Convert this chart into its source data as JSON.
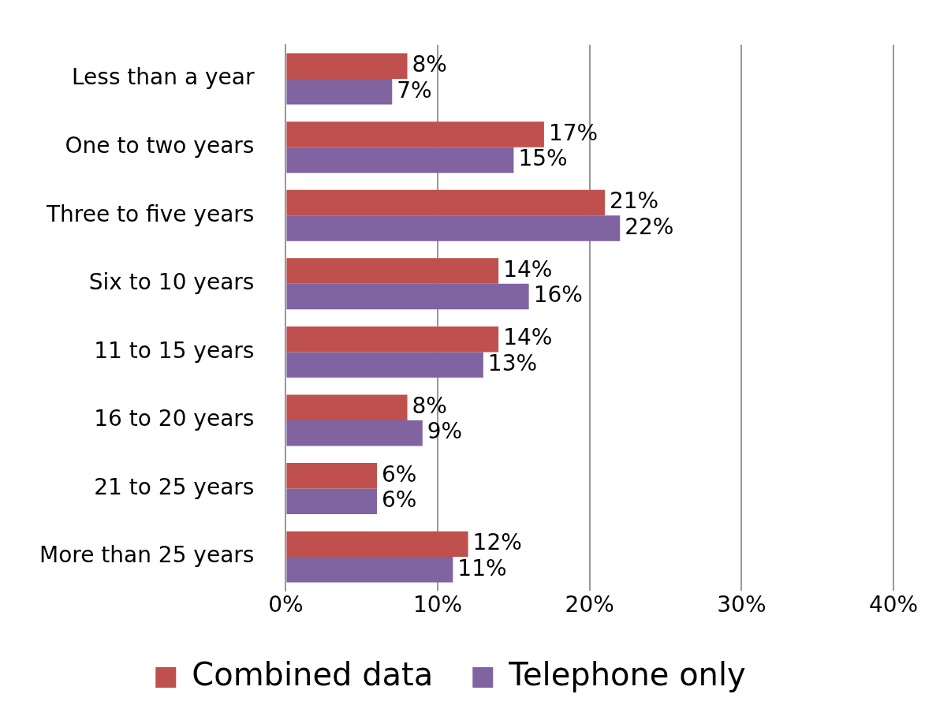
{
  "chart_data": {
    "type": "bar",
    "orientation": "horizontal",
    "categories": [
      "Less than a year",
      "One to two years",
      "Three to five years",
      "Six to 10 years",
      "11 to 15 years",
      "16 to 20 years",
      "21 to 25 years",
      "More than 25 years"
    ],
    "series": [
      {
        "name": "Combined data",
        "color": "#c0504d",
        "values": [
          8,
          17,
          21,
          14,
          14,
          8,
          6,
          12
        ],
        "value_labels": [
          "8%",
          "17%",
          "21%",
          "14%",
          "14%",
          "8%",
          "6%",
          "12%"
        ]
      },
      {
        "name": "Telephone only",
        "color": "#8064a2",
        "values": [
          7,
          15,
          22,
          16,
          13,
          9,
          6,
          11
        ],
        "value_labels": [
          "7%",
          "15%",
          "22%",
          "16%",
          "13%",
          "9%",
          "6%",
          "11%"
        ]
      }
    ],
    "xlim": [
      0,
      40
    ],
    "xticks": [
      {
        "value": 0,
        "label": "0%"
      },
      {
        "value": 10,
        "label": "10%"
      },
      {
        "value": 20,
        "label": "20%"
      },
      {
        "value": 30,
        "label": "30%"
      },
      {
        "value": 40,
        "label": "40%"
      }
    ],
    "grid": "x",
    "legend": "bottom"
  }
}
